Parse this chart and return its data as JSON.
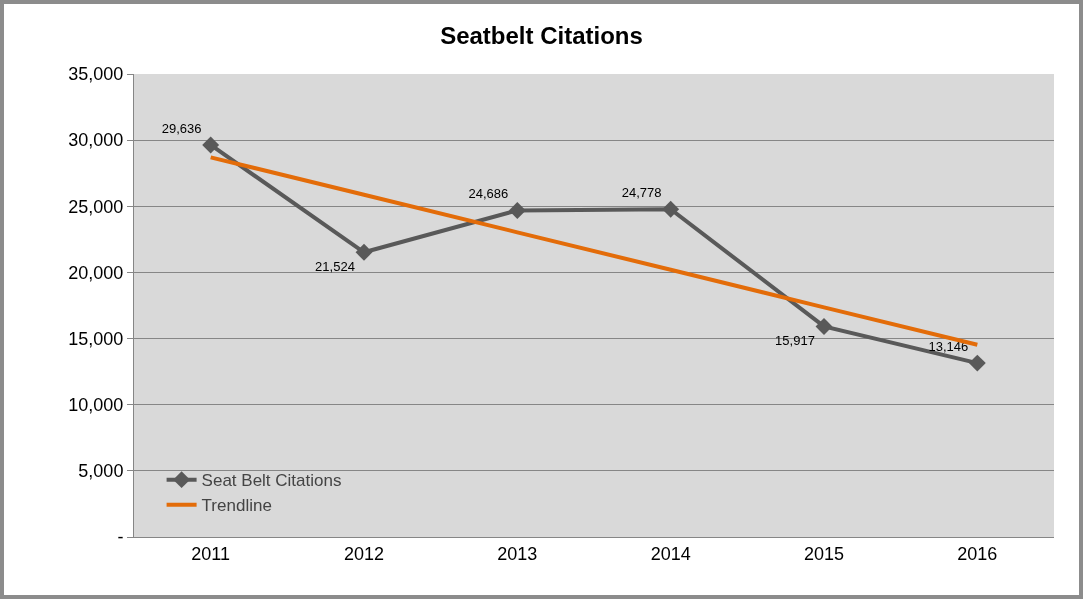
{
  "chart_data": {
    "type": "line",
    "title": "Seatbelt Citations",
    "categories": [
      "2011",
      "2012",
      "2013",
      "2014",
      "2015",
      "2016"
    ],
    "series": [
      {
        "name": "Seat Belt Citations",
        "color": "#595959",
        "values": [
          29636,
          21524,
          24686,
          24778,
          15917,
          13146
        ],
        "value_labels": [
          "29,636",
          "21,524",
          "24,686",
          "24,778",
          "15,917",
          "13,146"
        ],
        "marker": "diamond"
      },
      {
        "name": "Trendline",
        "color": "#e36c09",
        "values": [
          28700,
          25870,
          23030,
          20200,
          17360,
          14530
        ],
        "marker": "none"
      }
    ],
    "ylim": [
      0,
      35000
    ],
    "yticks": [
      {
        "value": 0,
        "label": "-"
      },
      {
        "value": 5000,
        "label": "5,000"
      },
      {
        "value": 10000,
        "label": "10,000"
      },
      {
        "value": 15000,
        "label": "15,000"
      },
      {
        "value": 20000,
        "label": "20,000"
      },
      {
        "value": 25000,
        "label": "25,000"
      },
      {
        "value": 30000,
        "label": "30,000"
      },
      {
        "value": 35000,
        "label": "35,000"
      }
    ],
    "grid": "y",
    "legend": "bottom left",
    "line_style": "solid"
  }
}
